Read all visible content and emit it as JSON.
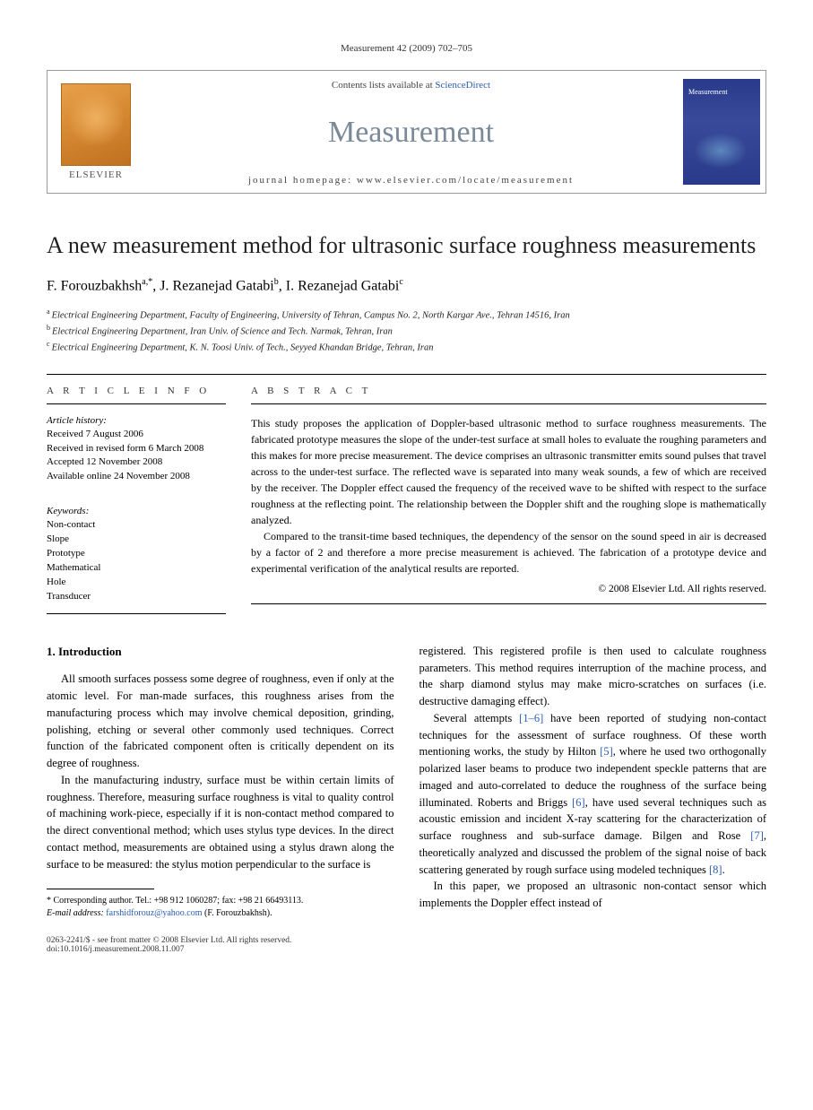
{
  "running_header": "Measurement 42 (2009) 702–705",
  "banner": {
    "contents_prefix": "Contents lists available at ",
    "contents_link": "ScienceDirect",
    "journal_name": "Measurement",
    "homepage_label": "journal homepage: www.elsevier.com/locate/measurement",
    "publisher": "ELSEVIER"
  },
  "title": "A new measurement method for ultrasonic surface roughness measurements",
  "authors_html": "F. Forouzbakhsh",
  "author_1": "F. Forouzbakhsh",
  "author_1_sup": "a,*",
  "author_2": "J. Rezanejad Gatabi",
  "author_2_sup": "b",
  "author_3": "I. Rezanejad Gatabi",
  "author_3_sup": "c",
  "affiliations": {
    "a": "Electrical Engineering Department, Faculty of Engineering, University of Tehran, Campus No. 2, North Kargar Ave., Tehran 14516, Iran",
    "b": "Electrical Engineering Department, Iran Univ. of Science and Tech. Narmak, Tehran, Iran",
    "c": "Electrical Engineering Department, K. N. Toosi Univ. of Tech., Seyyed Khandan Bridge, Tehran, Iran"
  },
  "info_label": "A R T I C L E   I N F O",
  "abstract_label": "A B S T R A C T",
  "history": {
    "label": "Article history:",
    "received": "Received 7 August 2006",
    "revised": "Received in revised form 6 March 2008",
    "accepted": "Accepted 12 November 2008",
    "online": "Available online 24 November 2008"
  },
  "keywords": {
    "label": "Keywords:",
    "items": [
      "Non-contact",
      "Slope",
      "Prototype",
      "Mathematical",
      "Hole",
      "Transducer"
    ]
  },
  "abstract": {
    "p1": "This study proposes the application of Doppler-based ultrasonic method to surface roughness measurements. The fabricated prototype measures the slope of the under-test surface at small holes to evaluate the roughing parameters and this makes for more precise measurement. The device comprises an ultrasonic transmitter emits sound pulses that travel across to the under-test surface. The reflected wave is separated into many weak sounds, a few of which are received by the receiver. The Doppler effect caused the frequency of the received wave to be shifted with respect to the surface roughness at the reflecting point. The relationship between the Doppler shift and the roughing slope is mathematically analyzed.",
    "p2": "Compared to the transit-time based techniques, the dependency of the sensor on the sound speed in air is decreased by a factor of 2 and therefore a more precise measurement is achieved. The fabrication of a prototype device and experimental verification of the analytical results are reported.",
    "copyright": "© 2008 Elsevier Ltd. All rights reserved."
  },
  "section1": {
    "heading": "1. Introduction",
    "left_p1": "All smooth surfaces possess some degree of roughness, even if only at the atomic level. For man-made surfaces, this roughness arises from the manufacturing process which may involve chemical deposition, grinding, polishing, etching or several other commonly used techniques. Correct function of the fabricated component often is critically dependent on its degree of roughness.",
    "left_p2": "In the manufacturing industry, surface must be within certain limits of roughness. Therefore, measuring surface roughness is vital to quality control of machining work-piece, especially if it is non-contact method compared to the direct conventional method; which uses stylus type devices. In the direct contact method, measurements are obtained using a stylus drawn along the surface to be measured: the stylus motion perpendicular to the surface is",
    "right_p1": "registered. This registered profile is then used to calculate roughness parameters. This method requires interruption of the machine process, and the sharp diamond stylus may make micro-scratches on surfaces (i.e. destructive damaging effect).",
    "right_p2a": "Several attempts ",
    "right_ref1": "[1–6]",
    "right_p2b": " have been reported of studying non-contact techniques for the assessment of surface roughness. Of these worth mentioning works, the study by Hilton ",
    "right_ref2": "[5]",
    "right_p2c": ", where he used two orthogonally polarized laser beams to produce two independent speckle patterns that are imaged and auto-correlated to deduce the roughness of the surface being illuminated. Roberts and Briggs ",
    "right_ref3": "[6]",
    "right_p2d": ", have used several techniques such as acoustic emission and incident X-ray scattering for the characterization of surface roughness and sub-surface damage. Bilgen and Rose ",
    "right_ref4": "[7]",
    "right_p2e": ", theoretically analyzed and discussed the problem of the signal noise of back scattering generated by rough surface using modeled techniques ",
    "right_ref5": "[8]",
    "right_p2f": ".",
    "right_p3": "In this paper, we proposed an ultrasonic non-contact sensor which implements the Doppler effect instead of"
  },
  "footnote": {
    "corr": "* Corresponding author. Tel.: +98 912 1060287; fax: +98 21 66493113.",
    "email_label": "E-mail address: ",
    "email": "farshidforouz@yahoo.com",
    "email_suffix": " (F. Forouzbakhsh)."
  },
  "footer": {
    "left1": "0263-2241/$ - see front matter © 2008 Elsevier Ltd. All rights reserved.",
    "left2": "doi:10.1016/j.measurement.2008.11.007"
  },
  "colors": {
    "link": "#2a5db0",
    "journal_gray": "#7a8a99",
    "elsevier_orange": "#d48830",
    "cover_blue": "#2a3a8a"
  }
}
